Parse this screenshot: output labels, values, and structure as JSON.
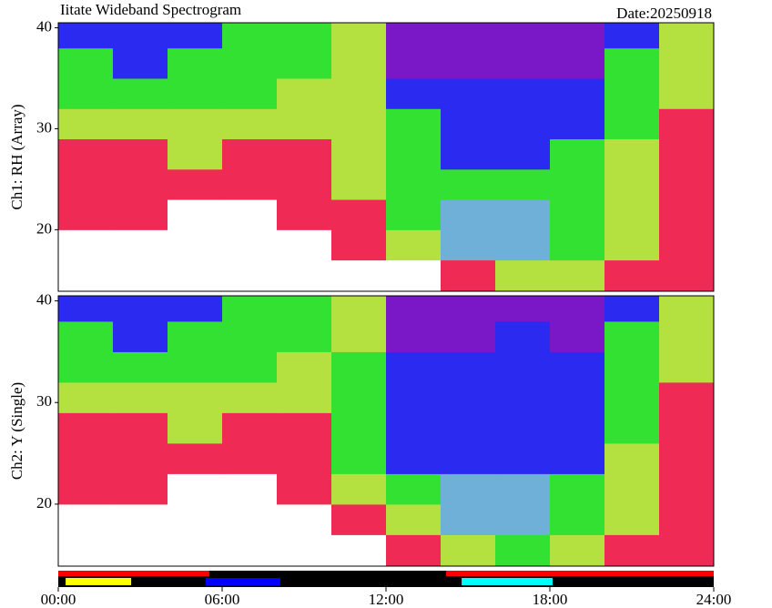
{
  "chart_data": [
    {
      "type": "heatmap",
      "title": "Iitate Wideband Spectrogram",
      "date": "Date:20250918",
      "ylabel": "Ch1: RH (Array)",
      "xlim": [
        0,
        24
      ],
      "ylim": [
        13.9,
        40.5
      ],
      "yticks": [
        20,
        30,
        40
      ],
      "colormap": [
        "#7a18c8",
        "#2a2af0",
        "#33e133",
        "#b4e040",
        "#ee2a55",
        "#ffffff",
        "#6fb0d8"
      ],
      "xbins": [
        0,
        2,
        4,
        6,
        8,
        10,
        12,
        14,
        16,
        18,
        20,
        22,
        24
      ],
      "ybins": [
        13.9,
        17,
        20,
        23,
        26,
        29,
        32,
        35,
        38,
        40.5
      ],
      "z": [
        [
          5,
          5,
          5,
          5,
          5,
          5,
          5,
          4,
          3,
          3,
          4,
          4
        ],
        [
          5,
          5,
          5,
          5,
          5,
          4,
          3,
          6,
          6,
          2,
          3,
          4
        ],
        [
          4,
          4,
          5,
          5,
          4,
          4,
          2,
          6,
          6,
          2,
          3,
          4
        ],
        [
          4,
          4,
          4,
          4,
          4,
          3,
          2,
          2,
          2,
          2,
          3,
          4
        ],
        [
          4,
          4,
          3,
          4,
          4,
          3,
          2,
          1,
          1,
          2,
          3,
          4
        ],
        [
          3,
          3,
          3,
          3,
          3,
          3,
          2,
          1,
          1,
          1,
          2,
          4
        ],
        [
          2,
          2,
          2,
          2,
          3,
          3,
          1,
          1,
          1,
          1,
          2,
          3
        ],
        [
          2,
          1,
          2,
          2,
          2,
          3,
          0,
          0,
          0,
          0,
          2,
          3
        ],
        [
          1,
          1,
          1,
          2,
          2,
          3,
          0,
          0,
          0,
          0,
          1,
          3
        ]
      ]
    },
    {
      "type": "heatmap",
      "ylabel": "Ch2: Y (Single)",
      "xlim": [
        0,
        24
      ],
      "ylim": [
        13.9,
        40.5
      ],
      "yticks": [
        20,
        30,
        40
      ],
      "colormap": [
        "#7a18c8",
        "#2a2af0",
        "#33e133",
        "#b4e040",
        "#ee2a55",
        "#ffffff",
        "#6fb0d8"
      ],
      "xbins": [
        0,
        2,
        4,
        6,
        8,
        10,
        12,
        14,
        16,
        18,
        20,
        22,
        24
      ],
      "ybins": [
        13.9,
        17,
        20,
        23,
        26,
        29,
        32,
        35,
        38,
        40.5
      ],
      "z": [
        [
          5,
          5,
          5,
          5,
          5,
          5,
          4,
          3,
          2,
          3,
          4,
          4
        ],
        [
          5,
          5,
          5,
          5,
          5,
          4,
          3,
          6,
          6,
          2,
          3,
          4
        ],
        [
          4,
          4,
          5,
          5,
          4,
          3,
          2,
          6,
          6,
          2,
          3,
          4
        ],
        [
          4,
          4,
          4,
          4,
          4,
          2,
          1,
          1,
          1,
          1,
          3,
          4
        ],
        [
          4,
          4,
          3,
          4,
          4,
          2,
          1,
          1,
          1,
          1,
          2,
          4
        ],
        [
          3,
          3,
          3,
          3,
          3,
          2,
          1,
          1,
          1,
          1,
          2,
          4
        ],
        [
          2,
          2,
          2,
          2,
          3,
          2,
          1,
          1,
          1,
          1,
          2,
          3
        ],
        [
          2,
          1,
          2,
          2,
          2,
          3,
          0,
          0,
          1,
          0,
          2,
          3
        ],
        [
          1,
          1,
          1,
          2,
          2,
          3,
          0,
          0,
          0,
          0,
          1,
          3
        ]
      ]
    },
    {
      "type": "timebar",
      "xlim": [
        0,
        24
      ],
      "background": "#000000",
      "xticks": [
        {
          "value": 0,
          "label": "00:00"
        },
        {
          "value": 6,
          "label": "06:00"
        },
        {
          "value": 12,
          "label": "12:00"
        },
        {
          "value": 18,
          "label": "18:00"
        },
        {
          "value": 24,
          "label": "24:00"
        }
      ],
      "series": [
        {
          "row": "upper",
          "color": "#ff0000",
          "ranges": [
            [
              0,
              5.53
            ],
            [
              14.2,
              24
            ]
          ]
        },
        {
          "row": "lower",
          "color": "#ffff00",
          "ranges": [
            [
              0.27,
              2.67
            ]
          ]
        },
        {
          "row": "lower",
          "color": "#0000ff",
          "ranges": [
            [
              5.4,
              8.13
            ]
          ]
        },
        {
          "row": "lower",
          "color": "#00ffff",
          "ranges": [
            [
              14.77,
              18.1
            ]
          ]
        }
      ]
    }
  ]
}
